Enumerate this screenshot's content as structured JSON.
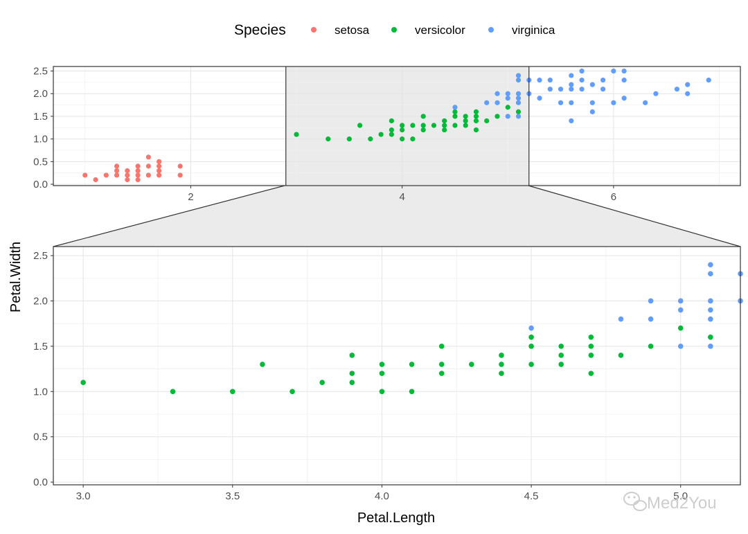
{
  "legend": {
    "title": "Species",
    "entries": [
      {
        "label": "setosa",
        "color": "#F8766D"
      },
      {
        "label": "versicolor",
        "color": "#00BA38"
      },
      {
        "label": "virginica",
        "color": "#619CFF"
      }
    ]
  },
  "watermark": {
    "text": "Med2You",
    "icon": "wechat-icon"
  },
  "chart_data": [
    {
      "type": "scatter",
      "name": "overview",
      "xlabel": "",
      "ylabel": "",
      "xlim": [
        0.7,
        7.2
      ],
      "ylim": [
        -0.03,
        2.6
      ],
      "x_ticks": [
        2,
        4,
        6
      ],
      "y_ticks": [
        0.0,
        0.5,
        1.0,
        1.5,
        2.0,
        2.5
      ],
      "x_tick_labels": [
        "2",
        "4",
        "6"
      ],
      "y_tick_labels": [
        "0.0",
        "0.5",
        "1.0",
        "1.5",
        "2.0",
        "2.5"
      ],
      "zoom_range": [
        2.9,
        5.2
      ],
      "grid": true,
      "series": [
        {
          "name": "setosa",
          "points": [
            [
              1.0,
              0.2
            ],
            [
              1.1,
              0.1
            ],
            [
              1.2,
              0.2
            ],
            [
              1.3,
              0.2
            ],
            [
              1.3,
              0.3
            ],
            [
              1.3,
              0.4
            ],
            [
              1.4,
              0.1
            ],
            [
              1.4,
              0.2
            ],
            [
              1.4,
              0.3
            ],
            [
              1.5,
              0.1
            ],
            [
              1.5,
              0.2
            ],
            [
              1.5,
              0.3
            ],
            [
              1.5,
              0.4
            ],
            [
              1.6,
              0.2
            ],
            [
              1.6,
              0.4
            ],
            [
              1.6,
              0.6
            ],
            [
              1.7,
              0.2
            ],
            [
              1.7,
              0.3
            ],
            [
              1.7,
              0.4
            ],
            [
              1.7,
              0.5
            ],
            [
              1.9,
              0.2
            ],
            [
              1.9,
              0.4
            ]
          ]
        },
        {
          "name": "versicolor",
          "points": [
            [
              3.0,
              1.1
            ],
            [
              3.3,
              1.0
            ],
            [
              3.5,
              1.0
            ],
            [
              3.6,
              1.3
            ],
            [
              3.7,
              1.0
            ],
            [
              3.8,
              1.1
            ],
            [
              3.9,
              1.1
            ],
            [
              3.9,
              1.2
            ],
            [
              3.9,
              1.4
            ],
            [
              4.0,
              1.0
            ],
            [
              4.0,
              1.2
            ],
            [
              4.0,
              1.3
            ],
            [
              4.1,
              1.0
            ],
            [
              4.1,
              1.3
            ],
            [
              4.2,
              1.2
            ],
            [
              4.2,
              1.3
            ],
            [
              4.2,
              1.5
            ],
            [
              4.3,
              1.3
            ],
            [
              4.4,
              1.2
            ],
            [
              4.4,
              1.3
            ],
            [
              4.4,
              1.4
            ],
            [
              4.5,
              1.3
            ],
            [
              4.5,
              1.5
            ],
            [
              4.5,
              1.6
            ],
            [
              4.6,
              1.3
            ],
            [
              4.6,
              1.4
            ],
            [
              4.6,
              1.5
            ],
            [
              4.7,
              1.2
            ],
            [
              4.7,
              1.4
            ],
            [
              4.7,
              1.5
            ],
            [
              4.7,
              1.6
            ],
            [
              4.8,
              1.4
            ],
            [
              4.9,
              1.5
            ],
            [
              5.0,
              1.7
            ],
            [
              5.1,
              1.6
            ]
          ]
        },
        {
          "name": "virginica",
          "points": [
            [
              4.5,
              1.7
            ],
            [
              4.8,
              1.8
            ],
            [
              4.9,
              1.8
            ],
            [
              4.9,
              2.0
            ],
            [
              5.0,
              1.5
            ],
            [
              5.0,
              1.9
            ],
            [
              5.0,
              2.0
            ],
            [
              5.1,
              1.5
            ],
            [
              5.1,
              1.8
            ],
            [
              5.1,
              1.9
            ],
            [
              5.1,
              2.0
            ],
            [
              5.1,
              2.3
            ],
            [
              5.1,
              2.4
            ],
            [
              5.2,
              2.0
            ],
            [
              5.2,
              2.3
            ],
            [
              5.3,
              1.9
            ],
            [
              5.3,
              2.3
            ],
            [
              5.4,
              2.1
            ],
            [
              5.4,
              2.3
            ],
            [
              5.5,
              1.8
            ],
            [
              5.5,
              2.1
            ],
            [
              5.6,
              1.4
            ],
            [
              5.6,
              1.8
            ],
            [
              5.6,
              2.1
            ],
            [
              5.6,
              2.2
            ],
            [
              5.6,
              2.4
            ],
            [
              5.7,
              2.1
            ],
            [
              5.7,
              2.3
            ],
            [
              5.7,
              2.5
            ],
            [
              5.8,
              1.6
            ],
            [
              5.8,
              1.8
            ],
            [
              5.8,
              2.2
            ],
            [
              5.9,
              2.1
            ],
            [
              5.9,
              2.3
            ],
            [
              6.0,
              1.8
            ],
            [
              6.0,
              2.5
            ],
            [
              6.1,
              1.9
            ],
            [
              6.1,
              2.3
            ],
            [
              6.1,
              2.5
            ],
            [
              6.3,
              1.8
            ],
            [
              6.4,
              2.0
            ],
            [
              6.6,
              2.1
            ],
            [
              6.7,
              2.0
            ],
            [
              6.7,
              2.2
            ],
            [
              6.9,
              2.3
            ]
          ]
        }
      ]
    },
    {
      "type": "scatter",
      "name": "zoom",
      "xlabel": "Petal.Length",
      "ylabel": "Petal.Width",
      "xlim": [
        2.9,
        5.2
      ],
      "ylim": [
        -0.03,
        2.6
      ],
      "x_ticks": [
        3.0,
        3.5,
        4.0,
        4.5,
        5.0
      ],
      "y_ticks": [
        0.0,
        0.5,
        1.0,
        1.5,
        2.0,
        2.5
      ],
      "x_tick_labels": [
        "3.0",
        "3.5",
        "4.0",
        "4.5",
        "5.0"
      ],
      "y_tick_labels": [
        "0.0",
        "0.5",
        "1.0",
        "1.5",
        "2.0",
        "2.5"
      ],
      "grid": true
    }
  ]
}
